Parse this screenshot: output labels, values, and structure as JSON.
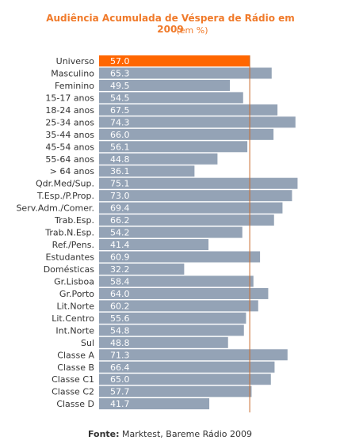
{
  "chart_data": {
    "type": "bar",
    "orientation": "horizontal",
    "title": "Audiência Acumulada de Véspera de Rádio em 2009",
    "subtitle": "(em %)",
    "categories": [
      "Universo",
      "Masculino",
      "Feminino",
      "15-17 anos",
      "18-24 anos",
      "25-34 anos",
      "35-44 anos",
      "45-54 anos",
      "55-64 anos",
      "> 64 anos",
      "Qdr.Med/Sup.",
      "T.Esp./P.Prop.",
      "Serv.Adm./Comer.",
      "Trab.Esp.",
      "Trab.N.Esp.",
      "Ref./Pens.",
      "Estudantes",
      "Domésticas",
      "Gr.Lisboa",
      "Gr.Porto",
      "Lit.Norte",
      "Lit.Centro",
      "Int.Norte",
      "Sul",
      "Classe A",
      "Classe B",
      "Classe C1",
      "Classe C2",
      "Classe D"
    ],
    "values": [
      57.0,
      65.3,
      49.5,
      54.5,
      67.5,
      74.3,
      66.0,
      56.1,
      44.8,
      36.1,
      75.1,
      73.0,
      69.4,
      66.2,
      54.2,
      41.4,
      60.9,
      32.2,
      58.4,
      64.0,
      60.2,
      55.6,
      54.8,
      48.8,
      71.3,
      66.4,
      65.0,
      57.7,
      41.7
    ],
    "value_labels": [
      "57.0",
      "65.3",
      "49.5",
      "54.5",
      "67.5",
      "74.3",
      "66.0",
      "56.1",
      "44.8",
      "36.1",
      "75.1",
      "73.0",
      "69.4",
      "66.2",
      "54.2",
      "41.4",
      "60.9",
      "32.2",
      "58.4",
      "64.0",
      "60.2",
      "55.6",
      "54.8",
      "48.8",
      "71.3",
      "66.4",
      "65.0",
      "57.7",
      "41.7"
    ],
    "highlight_category": "Universo",
    "reference_line_value": 57.0,
    "xlim": [
      0,
      77
    ],
    "grid": false,
    "colors": {
      "bar": "#94a3b6",
      "highlight": "#ff6600",
      "reference_line": "#c86a2a",
      "title": "#f07a2a",
      "value_label": "#ffffff",
      "category_label": "#333333"
    }
  },
  "source": {
    "label": "Fonte:",
    "text": "Marktest, Bareme Rádio 2009"
  }
}
